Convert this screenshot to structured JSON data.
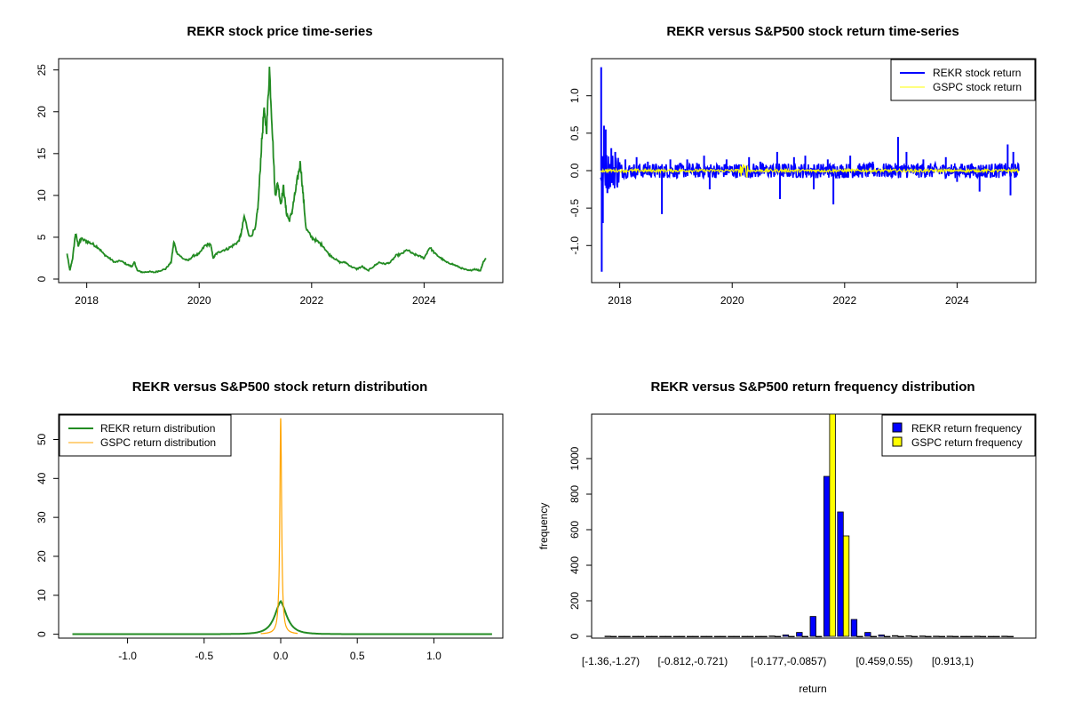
{
  "colors": {
    "price_line": "#228B22",
    "rekr_return": "#0000FF",
    "gspc_return": "#FFFF00",
    "rekr_density": "#228B22",
    "gspc_density": "#FFA500",
    "rekr_bar": "#0000FF",
    "gspc_bar": "#FFFF00"
  },
  "chart_data": [
    {
      "id": "price",
      "type": "line",
      "title": "REKR stock price time-series",
      "xlabel": "",
      "ylabel": "",
      "xlim": [
        2017.5,
        2025.4
      ],
      "ylim": [
        0,
        25.5
      ],
      "xticks": [
        2018,
        2020,
        2022,
        2024
      ],
      "xtick_labels": [
        "2018",
        "2020",
        "2022",
        "2024"
      ],
      "yticks": [
        0,
        5,
        10,
        15,
        20,
        25
      ],
      "ytick_labels": [
        "0",
        "5",
        "10",
        "15",
        "20",
        "25"
      ],
      "series": [
        {
          "name": "REKR price",
          "x": [
            2017.65,
            2017.7,
            2017.75,
            2017.8,
            2017.85,
            2017.9,
            2018.0,
            2018.1,
            2018.2,
            2018.3,
            2018.4,
            2018.5,
            2018.6,
            2018.7,
            2018.8,
            2018.85,
            2018.9,
            2019.0,
            2019.1,
            2019.2,
            2019.3,
            2019.4,
            2019.5,
            2019.55,
            2019.6,
            2019.7,
            2019.8,
            2019.9,
            2020.0,
            2020.1,
            2020.2,
            2020.25,
            2020.3,
            2020.4,
            2020.5,
            2020.6,
            2020.7,
            2020.75,
            2020.8,
            2020.9,
            2021.0,
            2021.05,
            2021.1,
            2021.15,
            2021.2,
            2021.25,
            2021.3,
            2021.35,
            2021.4,
            2021.45,
            2021.5,
            2021.55,
            2021.6,
            2021.65,
            2021.7,
            2021.75,
            2021.8,
            2021.85,
            2021.9,
            2022.0,
            2022.1,
            2022.2,
            2022.3,
            2022.4,
            2022.5,
            2022.6,
            2022.7,
            2022.8,
            2022.9,
            2023.0,
            2023.1,
            2023.2,
            2023.3,
            2023.4,
            2023.5,
            2023.6,
            2023.7,
            2023.8,
            2023.9,
            2024.0,
            2024.1,
            2024.2,
            2024.3,
            2024.4,
            2024.5,
            2024.6,
            2024.7,
            2024.8,
            2024.9,
            2025.0,
            2025.05,
            2025.1
          ],
          "y": [
            3.0,
            1.0,
            2.5,
            5.5,
            4.0,
            4.8,
            4.5,
            4.2,
            3.8,
            3.0,
            2.5,
            2.0,
            2.2,
            1.8,
            1.5,
            2.0,
            1.0,
            0.8,
            0.9,
            0.8,
            1.0,
            1.2,
            2.0,
            4.5,
            3.2,
            2.5,
            2.2,
            2.8,
            3.0,
            4.0,
            4.2,
            2.5,
            3.0,
            3.4,
            3.6,
            4.0,
            4.5,
            5.5,
            7.5,
            5.0,
            6.0,
            9.0,
            15.0,
            20.0,
            18.0,
            25.2,
            18.0,
            10.0,
            11.5,
            9.0,
            11.0,
            8.0,
            7.0,
            8.0,
            10.0,
            12.0,
            14.0,
            10.0,
            6.0,
            5.0,
            4.5,
            4.0,
            3.0,
            2.5,
            2.0,
            2.0,
            1.5,
            1.2,
            1.5,
            1.0,
            1.5,
            2.0,
            1.8,
            2.0,
            2.8,
            3.0,
            3.5,
            3.0,
            2.8,
            2.5,
            3.8,
            3.0,
            2.5,
            2.0,
            1.8,
            1.5,
            1.2,
            1.0,
            1.2,
            1.0,
            2.0,
            2.5
          ]
        }
      ]
    },
    {
      "id": "returns",
      "type": "line",
      "title": "REKR versus S&P500 stock return time-series",
      "xlabel": "",
      "ylabel": "",
      "xlim": [
        2017.5,
        2025.4
      ],
      "ylim": [
        -1.4,
        1.4
      ],
      "xticks": [
        2018,
        2020,
        2022,
        2024
      ],
      "xtick_labels": [
        "2018",
        "2020",
        "2022",
        "2024"
      ],
      "yticks": [
        -1.0,
        -0.5,
        0.0,
        0.5,
        1.0
      ],
      "ytick_labels": [
        "-1.0",
        "-0.5",
        "0.0",
        "0.5",
        "1.0"
      ],
      "legend": {
        "position": "top-right",
        "entries": [
          "REKR stock return",
          "GSPC stock return"
        ]
      },
      "series": [
        {
          "name": "REKR stock return",
          "spikes": [
            [
              2017.67,
              1.38
            ],
            [
              2017.68,
              -1.35
            ],
            [
              2017.7,
              -0.7
            ],
            [
              2017.72,
              0.6
            ],
            [
              2017.75,
              0.55
            ],
            [
              2017.78,
              -0.3
            ],
            [
              2017.85,
              0.3
            ],
            [
              2017.92,
              0.25
            ],
            [
              2018.1,
              0.15
            ],
            [
              2018.3,
              0.18
            ],
            [
              2018.5,
              0.12
            ],
            [
              2018.75,
              -0.58
            ],
            [
              2018.9,
              0.15
            ],
            [
              2019.2,
              0.15
            ],
            [
              2019.5,
              0.2
            ],
            [
              2019.6,
              -0.25
            ],
            [
              2019.9,
              0.15
            ],
            [
              2020.3,
              0.18
            ],
            [
              2020.5,
              0.12
            ],
            [
              2020.8,
              0.25
            ],
            [
              2020.85,
              -0.38
            ],
            [
              2021.1,
              0.18
            ],
            [
              2021.3,
              0.2
            ],
            [
              2021.45,
              -0.25
            ],
            [
              2021.7,
              0.15
            ],
            [
              2021.8,
              -0.45
            ],
            [
              2022.1,
              0.2
            ],
            [
              2022.5,
              0.12
            ],
            [
              2022.95,
              0.45
            ],
            [
              2023.1,
              0.25
            ],
            [
              2023.4,
              0.15
            ],
            [
              2023.8,
              0.18
            ],
            [
              2024.0,
              -0.15
            ],
            [
              2024.4,
              -0.28
            ],
            [
              2024.9,
              0.35
            ],
            [
              2024.95,
              -0.33
            ],
            [
              2025.0,
              0.25
            ]
          ],
          "noise_amplitude": 0.1
        },
        {
          "name": "GSPC stock return",
          "noise_amplitude": 0.02,
          "covid_spike": [
            2020.2,
            0.09
          ]
        }
      ]
    },
    {
      "id": "density",
      "type": "line",
      "title": "REKR versus S&P500 stock return distribution",
      "xlabel": "",
      "ylabel": "",
      "xlim": [
        -1.45,
        1.45
      ],
      "ylim": [
        -1.0,
        56.5
      ],
      "xticks": [
        -1.0,
        -0.5,
        0.0,
        0.5,
        1.0
      ],
      "xtick_labels": [
        "-1.0",
        "-0.5",
        "0.0",
        "0.5",
        "1.0"
      ],
      "yticks": [
        0,
        10,
        20,
        30,
        40,
        50
      ],
      "ytick_labels": [
        "0",
        "10",
        "20",
        "30",
        "40",
        "50"
      ],
      "legend": {
        "position": "top-left",
        "entries": [
          "REKR return distribution",
          "GSPC return distribution"
        ]
      },
      "series": [
        {
          "name": "REKR return distribution",
          "range": [
            -1.36,
            1.38
          ],
          "peak": 8.5,
          "sd": 0.047
        },
        {
          "name": "GSPC return distribution",
          "range": [
            -0.13,
            0.11
          ],
          "peak": 55.5,
          "sd": 0.0072
        }
      ]
    },
    {
      "id": "histogram",
      "type": "bar",
      "title": "REKR versus S&P500 return frequency distribution",
      "xlabel": "return",
      "ylabel": "frequency",
      "ylim": [
        0,
        1250
      ],
      "yticks": [
        0,
        200,
        400,
        600,
        800,
        1000
      ],
      "ytick_labels": [
        "0",
        "200",
        "400",
        "600",
        "800",
        "1000"
      ],
      "shown_category_labels": [
        "[-1.36,-1.27)",
        "[-0.812,-0.721)",
        "[-0.177,-0.0857)",
        "[0.459,0.55)",
        "[0.913,1)"
      ],
      "shown_category_index": [
        0,
        6,
        13,
        20,
        25
      ],
      "legend": {
        "position": "top-right",
        "entries": [
          "REKR return frequency",
          "GSPC return frequency"
        ]
      },
      "categories_count": 30,
      "series": [
        {
          "name": "REKR return frequency",
          "values": [
            1,
            0,
            0,
            0,
            0,
            0,
            0,
            0,
            0,
            0,
            0,
            0,
            2,
            8,
            22,
            112,
            900,
            700,
            95,
            22,
            8,
            4,
            3,
            2,
            1,
            1,
            0,
            1,
            0,
            1
          ]
        },
        {
          "name": "GSPC return frequency",
          "values": [
            0,
            0,
            0,
            0,
            0,
            0,
            0,
            0,
            0,
            0,
            0,
            0,
            0,
            0,
            0,
            0,
            1250,
            565,
            0,
            0,
            0,
            0,
            0,
            0,
            0,
            0,
            0,
            0,
            0,
            0
          ]
        }
      ]
    }
  ]
}
